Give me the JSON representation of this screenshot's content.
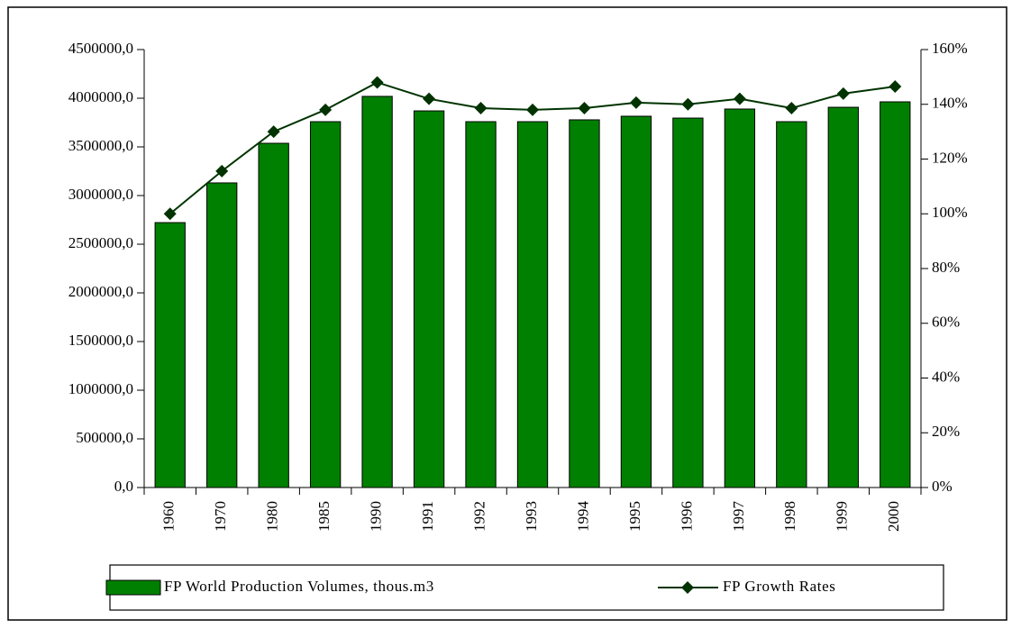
{
  "chart_data": {
    "type": "bar",
    "categories": [
      "1960",
      "1970",
      "1980",
      "1985",
      "1990",
      "1991",
      "1992",
      "1993",
      "1994",
      "1995",
      "1996",
      "1997",
      "1998",
      "1999",
      "2000"
    ],
    "series": [
      {
        "name": "FP World Production Volumes, thous.m3",
        "type": "bar",
        "color": "#008000",
        "values": [
          2722000,
          3130000,
          3537000,
          3759000,
          4019000,
          3870000,
          3759000,
          3759000,
          3778000,
          3815000,
          3796000,
          3889000,
          3759000,
          3907000,
          3963000
        ]
      },
      {
        "name": "FP Growth Rates",
        "type": "line",
        "axis": "y2",
        "color": "#003300",
        "values": [
          100,
          115.6,
          130,
          138,
          148,
          142,
          138.6,
          138,
          138.6,
          140.6,
          140,
          142,
          138.6,
          143.9,
          146.5
        ]
      }
    ],
    "ylim": [
      0,
      4500000
    ],
    "yticks": [
      {
        "value": 0,
        "label": "0,0"
      },
      {
        "value": 500000,
        "label": "500000,0"
      },
      {
        "value": 1000000,
        "label": "1000000,0"
      },
      {
        "value": 1500000,
        "label": "1500000,0"
      },
      {
        "value": 2000000,
        "label": "2000000,0"
      },
      {
        "value": 2500000,
        "label": "2500000,0"
      },
      {
        "value": 3000000,
        "label": "3000000,0"
      },
      {
        "value": 3500000,
        "label": "3500000,0"
      },
      {
        "value": 4000000,
        "label": "4000000,0"
      },
      {
        "value": 4500000,
        "label": "4500000,0"
      }
    ],
    "y2lim": [
      0,
      160
    ],
    "y2ticks": [
      {
        "value": 0,
        "label": "0%"
      },
      {
        "value": 20,
        "label": "20%"
      },
      {
        "value": 40,
        "label": "40%"
      },
      {
        "value": 60,
        "label": "60%"
      },
      {
        "value": 80,
        "label": "80%"
      },
      {
        "value": 100,
        "label": "100%"
      },
      {
        "value": 120,
        "label": "120%"
      },
      {
        "value": 140,
        "label": "140%"
      },
      {
        "value": 160,
        "label": "160%"
      }
    ],
    "legend": "bottom"
  }
}
